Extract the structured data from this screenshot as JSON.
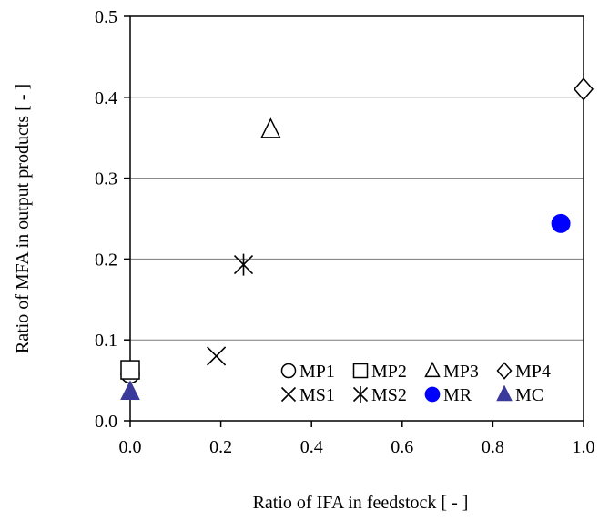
{
  "chart_data": {
    "type": "scatter",
    "xlabel": "Ratio of IFA in feedstock [ - ]",
    "ylabel": "Ratio of MFA in output products [ - ]",
    "xlim": [
      0,
      1
    ],
    "ylim": [
      0,
      0.5
    ],
    "xticks": [
      "0.0",
      "0.2",
      "0.4",
      "0.6",
      "0.8",
      "1.0"
    ],
    "yticks": [
      "0.0",
      "0.1",
      "0.2",
      "0.3",
      "0.4",
      "0.5"
    ],
    "grid": "horizontal",
    "legend_position": "bottom-right",
    "series": [
      {
        "name": "MP1",
        "marker": "circle-open",
        "color": "#000000",
        "x": 0.0,
        "y": 0.058
      },
      {
        "name": "MP2",
        "marker": "square-open",
        "color": "#000000",
        "x": 0.0,
        "y": 0.063
      },
      {
        "name": "MP3",
        "marker": "triangle-open",
        "color": "#000000",
        "x": 0.31,
        "y": 0.36
      },
      {
        "name": "MP4",
        "marker": "diamond-open",
        "color": "#000000",
        "x": 1.0,
        "y": 0.41
      },
      {
        "name": "MS1",
        "marker": "x",
        "color": "#000000",
        "x": 0.19,
        "y": 0.08
      },
      {
        "name": "MS2",
        "marker": "asterisk",
        "color": "#000000",
        "x": 0.25,
        "y": 0.193
      },
      {
        "name": "MR",
        "marker": "circle-filled",
        "color": "#0000ff",
        "x": 0.95,
        "y": 0.244
      },
      {
        "name": "MC",
        "marker": "triangle-filled",
        "color": "#3a3a9a",
        "x": 0.0,
        "y": 0.036
      }
    ]
  }
}
